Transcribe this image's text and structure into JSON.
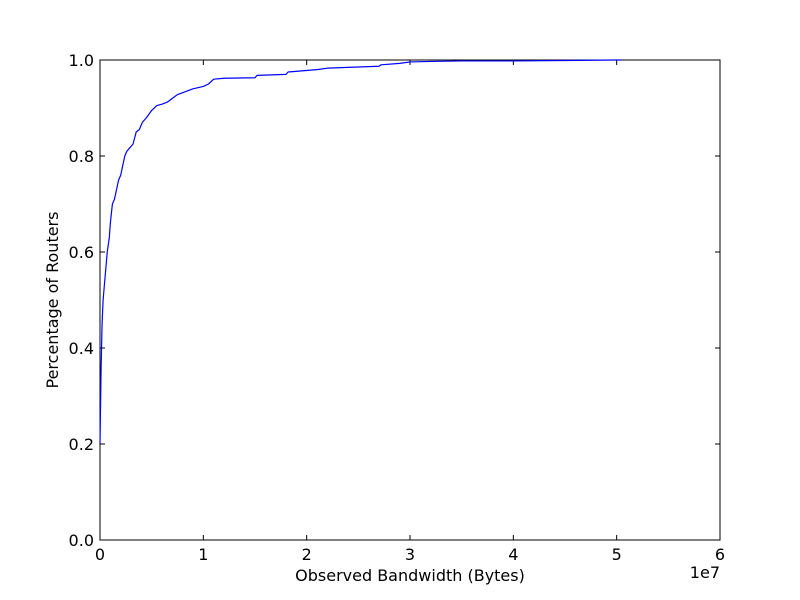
{
  "chart_data": {
    "type": "line",
    "title": "",
    "xlabel": "Observed Bandwidth (Bytes)",
    "ylabel": "Percentage of Routers",
    "x_scale_label": "1e7",
    "xlim": [
      0,
      6
    ],
    "ylim": [
      0.0,
      1.0
    ],
    "x_ticks": [
      0,
      1,
      2,
      3,
      4,
      5,
      6
    ],
    "x_tick_labels": [
      "0",
      "1",
      "2",
      "3",
      "4",
      "5",
      "6"
    ],
    "y_ticks": [
      0.0,
      0.2,
      0.4,
      0.6,
      0.8,
      1.0
    ],
    "y_tick_labels": [
      "0.0",
      "0.2",
      "0.4",
      "0.6",
      "0.8",
      "1.0"
    ],
    "grid": false,
    "legend": false,
    "series": [
      {
        "color": "#0000ff",
        "x": [
          0.0,
          0.01,
          0.02,
          0.03,
          0.05,
          0.07,
          0.09,
          0.1,
          0.11,
          0.12,
          0.14,
          0.16,
          0.18,
          0.2,
          0.22,
          0.24,
          0.26,
          0.28,
          0.3,
          0.32,
          0.35,
          0.38,
          0.41,
          0.45,
          0.5,
          0.55,
          0.6,
          0.65,
          0.7,
          0.75,
          0.8,
          0.9,
          1.0,
          1.05,
          1.1,
          1.2,
          1.5,
          1.52,
          1.8,
          1.82,
          2.1,
          2.2,
          2.7,
          2.72,
          2.9,
          3.0,
          3.2,
          3.5,
          4.0,
          4.5,
          5.0,
          5.05
        ],
        "y": [
          0.2,
          0.35,
          0.45,
          0.5,
          0.55,
          0.6,
          0.63,
          0.66,
          0.68,
          0.7,
          0.71,
          0.73,
          0.75,
          0.76,
          0.78,
          0.8,
          0.81,
          0.815,
          0.82,
          0.825,
          0.85,
          0.855,
          0.87,
          0.88,
          0.895,
          0.905,
          0.908,
          0.912,
          0.92,
          0.928,
          0.932,
          0.94,
          0.945,
          0.95,
          0.96,
          0.962,
          0.963,
          0.968,
          0.97,
          0.975,
          0.98,
          0.983,
          0.987,
          0.99,
          0.993,
          0.996,
          0.997,
          0.998,
          0.998,
          0.999,
          1.0,
          1.0
        ]
      }
    ]
  }
}
